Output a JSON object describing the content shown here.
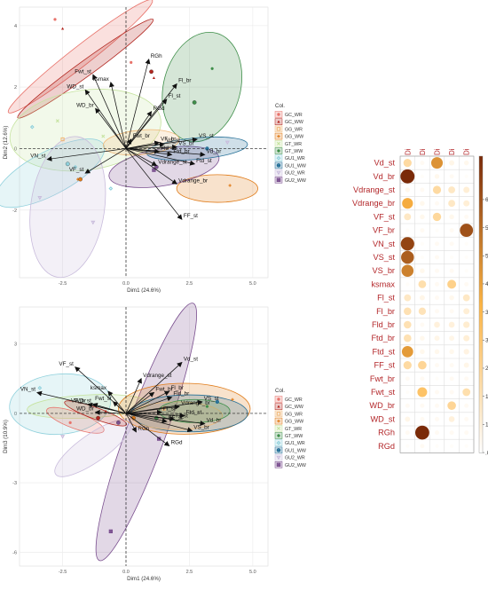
{
  "groups": [
    {
      "name": "GC_WR",
      "color": "#e8736b",
      "shape": "circle"
    },
    {
      "name": "GC_WW",
      "color": "#b2261f",
      "shape": "triangle"
    },
    {
      "name": "GG_WR",
      "color": "#f0b97a",
      "shape": "square"
    },
    {
      "name": "GG_WW",
      "color": "#e07b18",
      "shape": "plus"
    },
    {
      "name": "GT_WR",
      "color": "#c6e3a0",
      "shape": "cross"
    },
    {
      "name": "GT_WW",
      "color": "#3f8f4a",
      "shape": "asterisk"
    },
    {
      "name": "GU1_WR",
      "color": "#8fd0dc",
      "shape": "diamond"
    },
    {
      "name": "GU1_WW",
      "color": "#246f97",
      "shape": "circleplus"
    },
    {
      "name": "GU2_WR",
      "color": "#c9bcdc",
      "shape": "triangledown"
    },
    {
      "name": "GU2_WW",
      "color": "#7a4f8f",
      "shape": "squarecross"
    }
  ],
  "chart_data": [
    {
      "type": "scatter",
      "title": "",
      "xlabel": "Dim1 (24.6%)",
      "ylabel": "Dim2 (12.6%)",
      "xlim": [
        -4.2,
        5.6
      ],
      "ylim": [
        -4.2,
        4.6
      ],
      "xticks": [
        -2.5,
        0.0,
        2.5,
        5.0
      ],
      "xtick_labels": [
        "-2.5",
        "0.0",
        "2.5",
        "5.0"
      ],
      "yticks": [
        -2,
        0,
        2,
        4
      ],
      "ytick_labels": [
        "-2",
        "0",
        "2",
        "4"
      ],
      "legend_title": "Col.",
      "legend_position": "right",
      "ellipses": [
        {
          "group": "GC_WR",
          "cx": -1.8,
          "cy": 3.0,
          "rx": 3.6,
          "ry": 0.32,
          "angle": -38
        },
        {
          "group": "GC_WW",
          "cx": -1.6,
          "cy": 2.6,
          "rx": 3.3,
          "ry": 0.25,
          "angle": -36
        },
        {
          "group": "GT_WW",
          "cx": 3.0,
          "cy": 2.0,
          "rx": 2.2,
          "ry": 1.25,
          "angle": -75
        },
        {
          "group": "GT_WR",
          "cx": -1.6,
          "cy": 0.6,
          "rx": 3.0,
          "ry": 1.3,
          "angle": -8
        },
        {
          "group": "GU1_WR",
          "cx": -3.0,
          "cy": -0.8,
          "rx": 2.4,
          "ry": 0.7,
          "angle": -28
        },
        {
          "group": "GU2_WR",
          "cx": -2.3,
          "cy": -1.9,
          "rx": 2.8,
          "ry": 1.2,
          "angle": -82
        },
        {
          "group": "GG_WW",
          "cx": 3.6,
          "cy": -1.3,
          "rx": 1.6,
          "ry": 0.45,
          "angle": 0
        },
        {
          "group": "GU2_WW",
          "cx": 1.5,
          "cy": -0.6,
          "rx": 2.2,
          "ry": 0.6,
          "angle": -10
        },
        {
          "group": "GU1_WW",
          "cx": 2.8,
          "cy": 0.0,
          "rx": 2.0,
          "ry": 0.35,
          "angle": -5
        },
        {
          "group": "GG_WR",
          "cx": 0.6,
          "cy": 0.2,
          "rx": 1.5,
          "ry": 0.4,
          "angle": -5
        }
      ],
      "points": [
        {
          "group": "GC_WR",
          "x": -2.8,
          "y": 4.2
        },
        {
          "group": "GC_WR",
          "x": 0.2,
          "y": 2.8
        },
        {
          "group": "GC_WW",
          "x": -2.5,
          "y": 3.9
        },
        {
          "group": "GC_WW",
          "x": 1.1,
          "y": 2.3
        },
        {
          "group": "GT_WW",
          "x": 2.7,
          "y": 1.5
        },
        {
          "group": "GT_WW",
          "x": 3.4,
          "y": 2.6
        },
        {
          "group": "GT_WR",
          "x": -2.7,
          "y": 0.9
        },
        {
          "group": "GT_WR",
          "x": -0.9,
          "y": 0.4
        },
        {
          "group": "GU1_WR",
          "x": -3.7,
          "y": 0.7
        },
        {
          "group": "GU1_WR",
          "x": -2.0,
          "y": -0.6
        },
        {
          "group": "GU1_WR",
          "x": -0.6,
          "y": -1.3
        },
        {
          "group": "GU2_WR",
          "x": -1.3,
          "y": -2.4
        },
        {
          "group": "GU2_WR",
          "x": -3.4,
          "y": -1.6
        },
        {
          "group": "GG_WW",
          "x": -1.9,
          "y": -1.0
        },
        {
          "group": "GG_WW",
          "x": 4.1,
          "y": -1.2
        },
        {
          "group": "GG_WR",
          "x": -2.5,
          "y": 0.3
        },
        {
          "group": "GU2_WW",
          "x": 1.1,
          "y": -0.7
        },
        {
          "group": "GU1_WW",
          "x": 3.2,
          "y": 0.0
        },
        {
          "group": "GU2_WR",
          "x": 4.0,
          "y": 0.2
        }
      ],
      "centroids": [
        {
          "group": "GC_WW",
          "x": 1.0,
          "y": 2.5
        },
        {
          "group": "GT_WW",
          "x": 2.7,
          "y": 1.5
        },
        {
          "group": "GU1_WR",
          "x": -2.3,
          "y": -0.5
        },
        {
          "group": "GG_WW",
          "x": -1.8,
          "y": -1.0
        },
        {
          "group": "GU2_WW",
          "x": 1.2,
          "y": -0.6
        }
      ],
      "vectors": [
        {
          "name": "RGh",
          "x": 0.9,
          "y": 2.9
        },
        {
          "name": "Fwt_st",
          "x": -1.3,
          "y": 2.4
        },
        {
          "name": "ksmax",
          "x": -0.6,
          "y": 2.15
        },
        {
          "name": "WD_st",
          "x": -1.6,
          "y": 1.9
        },
        {
          "name": "WD_br",
          "x": -1.2,
          "y": 1.3
        },
        {
          "name": "Fl_br",
          "x": 2.0,
          "y": 2.1
        },
        {
          "name": "Fl_st",
          "x": 1.6,
          "y": 1.6
        },
        {
          "name": "RGd",
          "x": 1.0,
          "y": 1.2
        },
        {
          "name": "Fwt_br",
          "x": 0.2,
          "y": 0.3
        },
        {
          "name": "VS_st",
          "x": 2.8,
          "y": 0.3
        },
        {
          "name": "VS_br",
          "x": 2.0,
          "y": 0.05
        },
        {
          "name": "Vd_st",
          "x": 1.5,
          "y": 0.15
        },
        {
          "name": "Vd_br",
          "x": 3.1,
          "y": -0.2
        },
        {
          "name": "VF_br",
          "x": 1.3,
          "y": 0.2
        },
        {
          "name": "Fld_st",
          "x": 1.3,
          "y": -0.1
        },
        {
          "name": "Ftd_br",
          "x": 1.8,
          "y": -0.2
        },
        {
          "name": "Ftd_st",
          "x": 2.7,
          "y": -0.5
        },
        {
          "name": "Vdrange_st",
          "x": 1.2,
          "y": -0.55
        },
        {
          "name": "Vdrange_br",
          "x": 2.0,
          "y": -1.15
        },
        {
          "name": "FF_st",
          "x": 2.2,
          "y": -2.3
        },
        {
          "name": "VN_st",
          "x": -3.1,
          "y": -0.35
        },
        {
          "name": "VF_st",
          "x": -1.6,
          "y": -0.8
        }
      ]
    },
    {
      "type": "scatter",
      "title": "",
      "xlabel": "Dim1 (24.6%)",
      "ylabel": "Dim3 (10.9%)",
      "xlim": [
        -4.2,
        5.6
      ],
      "ylim": [
        -6.6,
        4.6
      ],
      "xticks": [
        -2.5,
        0.0,
        2.5,
        5.0
      ],
      "xtick_labels": [
        "-2.5",
        "0.0",
        "2.5",
        "5.0"
      ],
      "yticks": [
        -6,
        -3,
        0,
        3
      ],
      "ytick_labels": [
        "-6",
        "-3",
        "0",
        "3"
      ],
      "legend_title": "Col.",
      "legend_position": "right",
      "ellipses": [
        {
          "group": "GU2_WW",
          "cx": 0.8,
          "cy": -0.8,
          "rx": 5.4,
          "ry": 0.85,
          "angle": -70
        },
        {
          "group": "GU1_WR",
          "cx": -2.6,
          "cy": 0.4,
          "rx": 2.0,
          "ry": 1.3,
          "angle": -5
        },
        {
          "group": "GT_WR",
          "cx": -1.5,
          "cy": 0.3,
          "rx": 2.4,
          "ry": 0.5,
          "angle": -3
        },
        {
          "group": "GG_WW",
          "cx": 2.3,
          "cy": 0.2,
          "rx": 2.6,
          "ry": 1.1,
          "angle": 0
        },
        {
          "group": "GU1_WW",
          "cx": 2.5,
          "cy": 0.0,
          "rx": 2.3,
          "ry": 0.8,
          "angle": 0
        },
        {
          "group": "GC_WR",
          "cx": -2.0,
          "cy": -0.3,
          "rx": 1.2,
          "ry": 0.35,
          "angle": 20
        },
        {
          "group": "GG_WR",
          "cx": 2.0,
          "cy": -0.1,
          "rx": 1.8,
          "ry": 0.6,
          "angle": 0
        },
        {
          "group": "GU2_WR",
          "cx": -1.3,
          "cy": -1.5,
          "rx": 1.8,
          "ry": 0.6,
          "angle": -35
        },
        {
          "group": "GT_WW",
          "cx": 2.7,
          "cy": 0.1,
          "rx": 1.4,
          "ry": 0.5,
          "angle": 0
        },
        {
          "group": "GC_WW",
          "cx": -1.2,
          "cy": 0.0,
          "rx": 1.3,
          "ry": 0.25,
          "angle": 20
        }
      ],
      "points": [
        {
          "group": "GU2_WW",
          "x": -0.6,
          "y": -5.1
        },
        {
          "group": "GU1_WR",
          "x": -3.4,
          "y": 1.1
        },
        {
          "group": "GG_WW",
          "x": 4.2,
          "y": 0.6
        },
        {
          "group": "GU2_WR",
          "x": -2.5,
          "y": -1.0
        },
        {
          "group": "GC_WR",
          "x": -2.2,
          "y": -0.4
        },
        {
          "group": "GU1_WW",
          "x": 3.6,
          "y": 0.5
        },
        {
          "group": "GG_WR",
          "x": 1.5,
          "y": 0.2
        },
        {
          "group": "GT_WW",
          "x": 3.2,
          "y": 0.3
        },
        {
          "group": "GC_WW",
          "x": -0.8,
          "y": 0.1
        },
        {
          "group": "GU2_WW",
          "x": 1.3,
          "y": -1.1
        }
      ],
      "centroids": [
        {
          "group": "GC_WW",
          "x": -1.1,
          "y": -0.2
        },
        {
          "group": "GU2_WW",
          "x": -0.3,
          "y": -0.4
        },
        {
          "group": "GG_WW",
          "x": 0.3,
          "y": -0.2
        },
        {
          "group": "GT_WW",
          "x": 1.2,
          "y": -0.2
        }
      ],
      "vectors": [
        {
          "name": "Vd_st",
          "x": 2.2,
          "y": 2.2
        },
        {
          "name": "Vdrange_st",
          "x": 0.6,
          "y": 1.5
        },
        {
          "name": "Fwt_br",
          "x": 1.1,
          "y": 0.9
        },
        {
          "name": "Fl_br",
          "x": 1.7,
          "y": 0.95
        },
        {
          "name": "Fld_br",
          "x": 1.8,
          "y": 0.7
        },
        {
          "name": "VS_st",
          "x": 3.0,
          "y": 0.5
        },
        {
          "name": "Vdrange_br",
          "x": 2.1,
          "y": 0.3
        },
        {
          "name": "Fl_st",
          "x": 1.4,
          "y": 0.05
        },
        {
          "name": "Ftd_st",
          "x": 2.3,
          "y": -0.1
        },
        {
          "name": "FF_st",
          "x": 1.6,
          "y": -0.35
        },
        {
          "name": "Vd_br",
          "x": 3.1,
          "y": -0.45
        },
        {
          "name": "VS_br",
          "x": 2.6,
          "y": -0.75
        },
        {
          "name": "Fl_st2",
          "x": 1.9,
          "y": -0.25
        },
        {
          "name": "RGh",
          "x": 0.4,
          "y": -0.8
        },
        {
          "name": "RGd",
          "x": 1.7,
          "y": -1.4
        },
        {
          "name": "VF_st",
          "x": -2.0,
          "y": 2.0
        },
        {
          "name": "VN_st",
          "x": -3.5,
          "y": 0.9
        },
        {
          "name": "WD_st",
          "x": -1.3,
          "y": 0.4
        },
        {
          "name": "WD_br",
          "x": -1.2,
          "y": 0.05
        },
        {
          "name": "Fwt_st",
          "x": -0.5,
          "y": 0.5
        },
        {
          "name": "ksmax",
          "x": -0.7,
          "y": 0.95
        },
        {
          "name": "VF_br",
          "x": -1.5,
          "y": 0.4
        }
      ],
      "vector_labels": {
        "Fl_st2": "Fl_st"
      }
    },
    {
      "type": "heatmap",
      "title": "",
      "columns": [
        "Dim.1",
        "Dim.2",
        "Dim.3",
        "Dim.4",
        "Dim.5"
      ],
      "rows": [
        "Vd_st",
        "Vd_br",
        "Vdrange_st",
        "Vdrange_br",
        "VF_st",
        "VF_br",
        "VN_st",
        "VS_st",
        "VS_br",
        "ksmax",
        "Fl_st",
        "Fl_br",
        "Fld_br",
        "Ftd_br",
        "Ftd_st",
        "FF_st",
        "Fwt_br",
        "Fwt_st",
        "WD_br",
        "WD_st",
        "RGh",
        "RGd"
      ],
      "values": [
        [
          16,
          2,
          40,
          4,
          3
        ],
        [
          64,
          1,
          3,
          2,
          1
        ],
        [
          3,
          2,
          16,
          10,
          7
        ],
        [
          34,
          3,
          2,
          10,
          7
        ],
        [
          10,
          3,
          17,
          3,
          2
        ],
        [
          1,
          2,
          1,
          2,
          55
        ],
        [
          58,
          1,
          2,
          2,
          1
        ],
        [
          52,
          1,
          2,
          1,
          1
        ],
        [
          44,
          3,
          2,
          2,
          1
        ],
        [
          1,
          14,
          2,
          20,
          2
        ],
        [
          10,
          4,
          2,
          3,
          10
        ],
        [
          13,
          12,
          2,
          2,
          7
        ],
        [
          13,
          2,
          6,
          6,
          8
        ],
        [
          13,
          3,
          4,
          4,
          7
        ],
        [
          38,
          3,
          3,
          3,
          5
        ],
        [
          16,
          18,
          2,
          2,
          4
        ],
        [
          2,
          2,
          1,
          2,
          2
        ],
        [
          1,
          26,
          2,
          2,
          14
        ],
        [
          2,
          2,
          2,
          18,
          2
        ],
        [
          4,
          2,
          2,
          6,
          2
        ],
        [
          2,
          64,
          2,
          2,
          2
        ],
        [
          1,
          2,
          1,
          1,
          1
        ]
      ],
      "colorbar": {
        "min": 0,
        "max": 64,
        "ticks": [
          0.06,
          6.13,
          12.19,
          18.26,
          24.32,
          30.38,
          36.45,
          42.51,
          48.58,
          54.64
        ],
        "tick_labels": [
          "0.06",
          "6.13",
          "12.19",
          "18.26",
          "24.32",
          "30.38",
          "36.45",
          "42.51",
          "48.58",
          "54.64"
        ],
        "visible_tick_labels": [
          ".06",
          "13",
          "19",
          "26",
          "32",
          "38",
          "45",
          "51",
          "58",
          "64"
        ]
      },
      "colors": {
        "low": "#ffffff",
        "mid": "#fdb544",
        "high": "#7a2a08",
        "label": "#b3272a"
      }
    }
  ]
}
